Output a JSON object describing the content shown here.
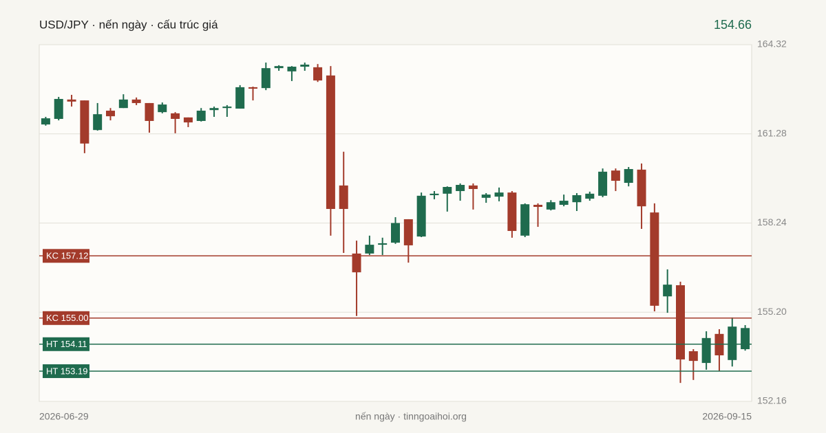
{
  "chart_data": {
    "type": "candlestick",
    "title": "USD/JPY · nến ngày · cấu trúc giá",
    "last_price": 154.66,
    "source": "nến ngày · tinngoaihoi.org",
    "up_color": "#1f6b4e",
    "down_color": "#a33b2b",
    "categories": [
      "2026-06-29",
      null,
      null,
      null,
      null,
      null,
      null,
      null,
      null,
      null,
      null,
      null,
      null,
      null,
      null,
      null,
      null,
      null,
      null,
      null,
      null,
      null,
      null,
      null,
      null,
      null,
      null,
      null,
      null,
      null,
      null,
      null,
      null,
      null,
      null,
      null,
      null,
      null,
      null,
      null,
      null,
      null,
      null,
      null,
      null,
      null,
      null,
      null,
      null,
      null,
      null,
      null,
      null,
      null,
      "2026-09-15"
    ],
    "open": [
      161.6,
      161.79,
      162.45,
      162.42,
      161.41,
      162.07,
      162.16,
      162.45,
      162.33,
      162.02,
      161.98,
      161.84,
      161.72,
      162.09,
      162.16,
      162.14,
      162.87,
      162.84,
      163.52,
      163.41,
      163.57,
      163.55,
      163.27,
      159.52,
      157.2,
      157.2,
      157.5,
      157.57,
      158.37,
      157.78,
      159.19,
      159.24,
      159.33,
      159.52,
      159.1,
      159.14,
      159.28,
      157.81,
      158.86,
      158.7,
      158.86,
      158.95,
      159.07,
      159.17,
      160.03,
      159.61,
      160.06,
      158.6,
      155.74,
      156.12,
      153.87,
      153.47,
      154.46,
      153.57,
      153.94
    ],
    "high": [
      161.86,
      162.54,
      162.61,
      162.42,
      162.33,
      162.16,
      162.63,
      162.52,
      162.33,
      162.35,
      162.02,
      161.84,
      162.16,
      162.21,
      162.26,
      162.94,
      162.89,
      163.71,
      163.62,
      163.59,
      163.71,
      163.66,
      163.59,
      160.67,
      157.64,
      157.81,
      157.74,
      158.44,
      158.37,
      159.28,
      159.33,
      159.49,
      159.59,
      159.59,
      159.26,
      159.45,
      159.33,
      158.91,
      158.91,
      159.02,
      159.21,
      159.26,
      159.31,
      160.1,
      160.1,
      160.15,
      160.27,
      158.91,
      156.66,
      156.24,
      153.94,
      154.55,
      154.62,
      155.02,
      154.76
    ],
    "low": [
      161.56,
      161.74,
      162.21,
      160.62,
      161.39,
      161.74,
      162.16,
      162.26,
      161.32,
      161.98,
      161.3,
      161.51,
      161.7,
      161.86,
      161.86,
      162.14,
      162.42,
      162.77,
      163.43,
      163.08,
      163.43,
      163.05,
      157.81,
      157.22,
      155.07,
      157.15,
      157.15,
      157.53,
      156.89,
      157.76,
      159.05,
      158.63,
      159.0,
      158.7,
      158.93,
      158.98,
      157.74,
      157.76,
      158.11,
      158.67,
      158.81,
      158.65,
      159.0,
      159.12,
      159.33,
      159.49,
      158.04,
      155.23,
      155.18,
      152.79,
      152.89,
      153.24,
      153.19,
      153.35,
      153.89
    ],
    "close": [
      161.81,
      162.47,
      162.38,
      160.95,
      161.95,
      161.88,
      162.45,
      162.33,
      161.72,
      162.28,
      161.79,
      161.67,
      162.07,
      162.16,
      162.21,
      162.87,
      162.82,
      163.52,
      163.59,
      163.57,
      163.64,
      163.1,
      158.72,
      158.72,
      156.56,
      157.5,
      157.55,
      158.24,
      157.48,
      159.17,
      159.24,
      159.47,
      159.54,
      159.4,
      159.21,
      159.28,
      157.97,
      158.88,
      158.79,
      158.95,
      159.0,
      159.19,
      159.24,
      159.99,
      159.68,
      160.08,
      158.81,
      155.42,
      156.14,
      153.59,
      153.54,
      154.32,
      153.73,
      154.71,
      154.66
    ],
    "levels": [
      {
        "label": "KC 157.12",
        "value": 157.12,
        "color": "#a33b2b"
      },
      {
        "label": "KC 155.00",
        "value": 155.0,
        "color": "#a33b2b"
      },
      {
        "label": "HT 154.11",
        "value": 154.11,
        "color": "#1f6b4e"
      },
      {
        "label": "HT 153.19",
        "value": 153.19,
        "color": "#1f6b4e"
      }
    ],
    "ylim": [
      152.16,
      164.32
    ],
    "yticks": [
      164.32,
      161.28,
      158.24,
      {
        "value": 155.2,
        "label": "155.20"
      },
      152.16
    ],
    "grid": true
  }
}
